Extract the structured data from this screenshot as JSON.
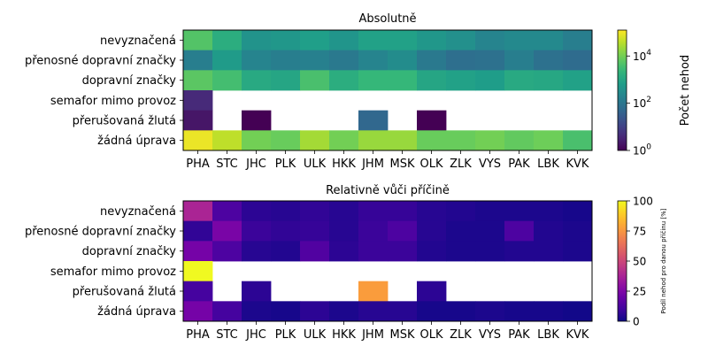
{
  "chart_data": [
    {
      "type": "heatmap",
      "title": "Absolutně",
      "x_categories": [
        "PHA",
        "STC",
        "JHC",
        "PLK",
        "ULK",
        "HKK",
        "JHM",
        "MSK",
        "OLK",
        "ZLK",
        "VYS",
        "PAK",
        "LBK",
        "KVK"
      ],
      "y_categories": [
        "nevyznačená",
        "přenosné dopravní značky",
        "dopravní značky",
        "semafor mimo provoz",
        "přerušovaná žlutá",
        "žádná úprava"
      ],
      "scale": "log",
      "colormap": "viridis",
      "values": [
        [
          5000,
          1500,
          400,
          500,
          700,
          450,
          800,
          800,
          500,
          350,
          200,
          250,
          250,
          150
        ],
        [
          150,
          600,
          200,
          150,
          170,
          120,
          200,
          300,
          120,
          70,
          80,
          150,
          80,
          60
        ],
        [
          6000,
          3500,
          1200,
          1000,
          4000,
          1500,
          2500,
          2500,
          1000,
          800,
          650,
          1200,
          1100,
          800
        ],
        [
          4,
          null,
          null,
          null,
          null,
          null,
          null,
          null,
          null,
          null,
          null,
          null,
          null,
          null
        ],
        [
          2,
          null,
          1,
          null,
          null,
          null,
          50,
          null,
          1,
          null,
          null,
          null,
          null,
          null
        ],
        [
          90000,
          40000,
          10000,
          8000,
          25000,
          10000,
          20000,
          20000,
          8000,
          8000,
          10000,
          7000,
          9000,
          4000
        ]
      ],
      "colorbar": {
        "label": "Počet nehod",
        "ticks": [
          1,
          100,
          10000
        ],
        "tick_labels": [
          {
            "base": "10",
            "exp": "0"
          },
          {
            "base": "10",
            "exp": "2"
          },
          {
            "base": "10",
            "exp": "4"
          }
        ],
        "range": [
          1,
          125000
        ]
      }
    },
    {
      "type": "heatmap",
      "title": "Relativně vůči příčině",
      "x_categories": [
        "PHA",
        "STC",
        "JHC",
        "PLK",
        "ULK",
        "HKK",
        "JHM",
        "MSK",
        "OLK",
        "ZLK",
        "VYS",
        "PAK",
        "LBK",
        "KVK"
      ],
      "y_categories": [
        "nevyznačená",
        "přenosné dopravní značky",
        "dopravní značky",
        "semafor mimo provoz",
        "přerušovaná žlutá",
        "žádná úprava"
      ],
      "scale": "linear",
      "colormap": "plasma",
      "values": [
        [
          38,
          13,
          6,
          5,
          7,
          5,
          8,
          8,
          5,
          4,
          3,
          3,
          3,
          2
        ],
        [
          7,
          24,
          9,
          7,
          8,
          5,
          9,
          13,
          5,
          3,
          3,
          13,
          4,
          3
        ],
        [
          23,
          13,
          5,
          4,
          14,
          6,
          9,
          9,
          4,
          3,
          3,
          4,
          4,
          3
        ],
        [
          100,
          null,
          null,
          null,
          null,
          null,
          null,
          null,
          null,
          null,
          null,
          null,
          null,
          null
        ],
        [
          11,
          null,
          6,
          null,
          null,
          null,
          77,
          null,
          6,
          null,
          null,
          null,
          null,
          null
        ],
        [
          23,
          11,
          3,
          2,
          6,
          3,
          5,
          5,
          2,
          2,
          3,
          2,
          2,
          1
        ]
      ],
      "colorbar": {
        "label": "Podíl nehod pro danou příčinu [%]",
        "ticks": [
          0,
          25,
          50,
          75,
          100
        ],
        "tick_labels": [
          "0",
          "25",
          "50",
          "75",
          "100"
        ],
        "range": [
          0,
          100
        ]
      }
    }
  ]
}
